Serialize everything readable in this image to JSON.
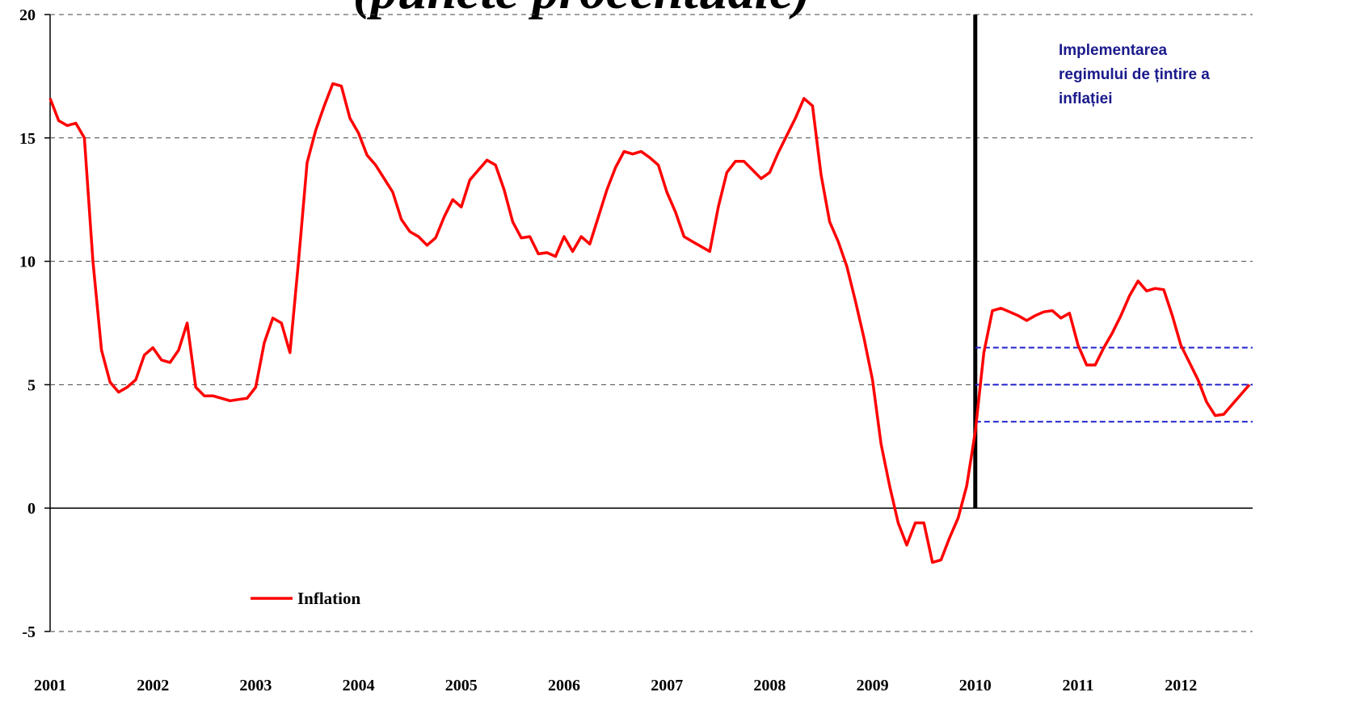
{
  "chart_data": {
    "type": "line",
    "title": "(puncte procentuale)",
    "categories": [
      "2001",
      null,
      null,
      null,
      null,
      null,
      null,
      null,
      null,
      null,
      null,
      null,
      "2002",
      null,
      null,
      null,
      null,
      null,
      null,
      null,
      null,
      null,
      null,
      null,
      "2003",
      null,
      null,
      null,
      null,
      null,
      null,
      null,
      null,
      null,
      null,
      null,
      "2004",
      null,
      null,
      null,
      null,
      null,
      null,
      null,
      null,
      null,
      null,
      null,
      "2005",
      null,
      null,
      null,
      null,
      null,
      null,
      null,
      null,
      null,
      null,
      null,
      "2006",
      null,
      null,
      null,
      null,
      null,
      null,
      null,
      null,
      null,
      null,
      null,
      "2007",
      null,
      null,
      null,
      null,
      null,
      null,
      null,
      null,
      null,
      null,
      null,
      "2008",
      null,
      null,
      null,
      null,
      null,
      null,
      null,
      null,
      null,
      null,
      null,
      "2009",
      null,
      null,
      null,
      null,
      null,
      null,
      null,
      null,
      null,
      null,
      null,
      "2010",
      null,
      null,
      null,
      null,
      null,
      null,
      null,
      null,
      null,
      null,
      null,
      "2011",
      null,
      null,
      null,
      null,
      null,
      null,
      null,
      null,
      null,
      null,
      null,
      "2012",
      null,
      null,
      null,
      null,
      null,
      null,
      null,
      null
    ],
    "series": [
      {
        "name": "Inflation",
        "color": "#ff0000",
        "values": [
          16.6,
          15.7,
          15.5,
          15.6,
          15.0,
          10.0,
          6.4,
          5.1,
          4.7,
          4.9,
          5.2,
          6.2,
          6.5,
          6.0,
          5.9,
          6.4,
          7.5,
          4.9,
          4.55,
          4.55,
          4.45,
          4.35,
          4.4,
          4.45,
          4.9,
          6.7,
          7.7,
          7.5,
          6.3,
          10.0,
          14.0,
          15.3,
          16.3,
          17.2,
          17.1,
          15.8,
          15.2,
          14.3,
          13.9,
          13.35,
          12.8,
          11.7,
          11.2,
          11.0,
          10.65,
          10.95,
          11.8,
          12.5,
          12.2,
          13.3,
          13.7,
          14.1,
          13.9,
          12.9,
          11.6,
          10.95,
          11.0,
          10.3,
          10.35,
          10.2,
          11.0,
          10.4,
          11.0,
          10.7,
          11.8,
          12.9,
          13.8,
          14.45,
          14.35,
          14.45,
          14.2,
          13.9,
          12.8,
          12.0,
          11.0,
          10.8,
          10.6,
          10.4,
          12.2,
          13.6,
          14.05,
          14.05,
          13.7,
          13.35,
          13.6,
          14.4,
          15.1,
          15.8,
          16.6,
          16.3,
          13.5,
          11.6,
          10.8,
          9.8,
          8.4,
          6.9,
          5.2,
          2.6,
          0.9,
          -0.6,
          -1.5,
          -0.6,
          -0.6,
          -2.2,
          -2.1,
          -1.2,
          -0.4,
          0.9,
          3.1,
          6.3,
          8.0,
          8.1,
          7.95,
          7.8,
          7.6,
          7.8,
          7.95,
          8.0,
          7.7,
          7.9,
          6.6,
          5.8,
          5.8,
          6.5,
          7.1,
          7.8,
          8.6,
          9.2,
          8.8,
          8.9,
          8.85,
          7.8,
          6.6,
          5.9,
          5.2,
          4.3,
          3.75,
          3.8,
          4.2,
          4.6,
          5.0
        ]
      }
    ],
    "ylim": [
      -5,
      20
    ],
    "yticks": [
      -5,
      0,
      5,
      10,
      15,
      20
    ],
    "grid": true,
    "marker_category": "2010",
    "reference_lines": [
      {
        "value": 6.5,
        "color": "#2020cc"
      },
      {
        "value": 5,
        "color": "#2020cc"
      },
      {
        "value": 3.5,
        "color": "#2020cc"
      }
    ],
    "annotation": {
      "lines": [
        "Implementarea",
        "regimului de țintire a",
        "inflației"
      ],
      "color": "#1a1a8c"
    },
    "legend": "lower left"
  }
}
